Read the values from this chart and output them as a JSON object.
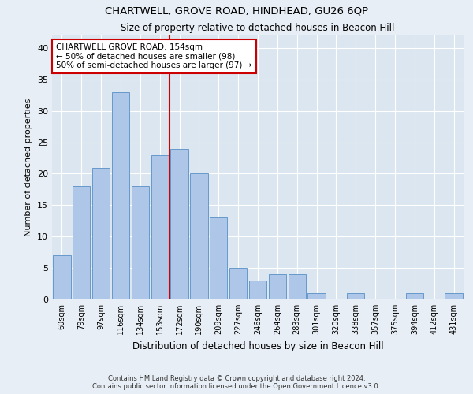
{
  "title": "CHARTWELL, GROVE ROAD, HINDHEAD, GU26 6QP",
  "subtitle": "Size of property relative to detached houses in Beacon Hill",
  "xlabel": "Distribution of detached houses by size in Beacon Hill",
  "ylabel": "Number of detached properties",
  "categories": [
    "60sqm",
    "79sqm",
    "97sqm",
    "116sqm",
    "134sqm",
    "153sqm",
    "172sqm",
    "190sqm",
    "209sqm",
    "227sqm",
    "246sqm",
    "264sqm",
    "283sqm",
    "301sqm",
    "320sqm",
    "338sqm",
    "357sqm",
    "375sqm",
    "394sqm",
    "412sqm",
    "431sqm"
  ],
  "values": [
    7,
    18,
    21,
    33,
    18,
    23,
    24,
    20,
    13,
    5,
    3,
    4,
    4,
    1,
    0,
    1,
    0,
    0,
    1,
    0,
    1
  ],
  "bar_color": "#aec6e8",
  "bar_edge_color": "#6699cc",
  "red_line_index": 5,
  "red_line_label": "CHARTWELL GROVE ROAD: 154sqm",
  "annotation_line1": "← 50% of detached houses are smaller (98)",
  "annotation_line2": "50% of semi-detached houses are larger (97) →",
  "annotation_box_color": "#ffffff",
  "annotation_box_edge": "#cc0000",
  "ylim": [
    0,
    42
  ],
  "yticks": [
    0,
    5,
    10,
    15,
    20,
    25,
    30,
    35,
    40
  ],
  "background_color": "#dce6f0",
  "plot_bg_color": "#dce6f0",
  "fig_bg_color": "#e8eef5",
  "grid_color": "#ffffff",
  "footer_line1": "Contains HM Land Registry data © Crown copyright and database right 2024.",
  "footer_line2": "Contains public sector information licensed under the Open Government Licence v3.0."
}
